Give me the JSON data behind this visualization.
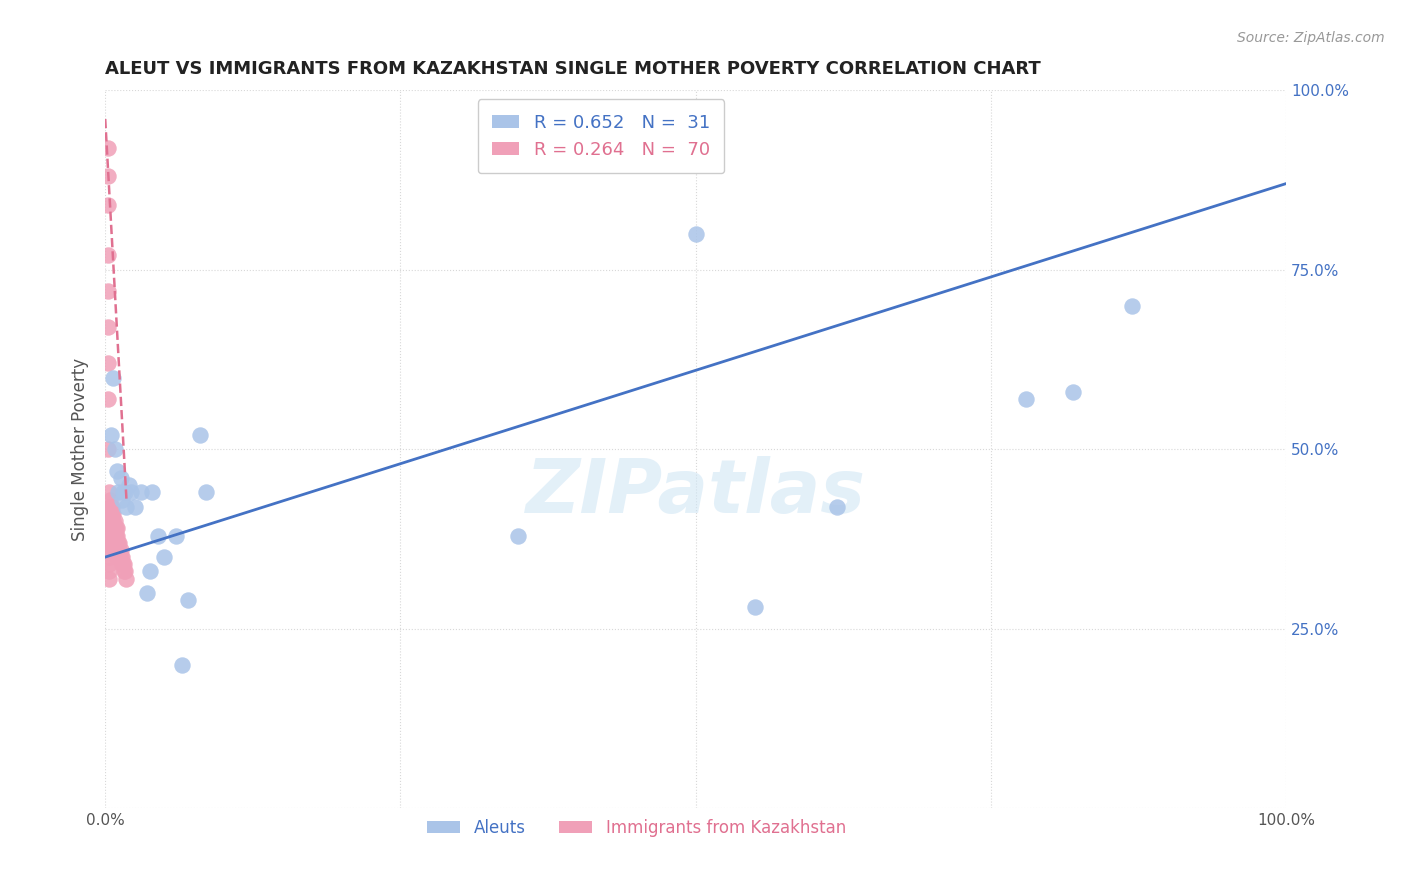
{
  "title": "ALEUT VS IMMIGRANTS FROM KAZAKHSTAN SINGLE MOTHER POVERTY CORRELATION CHART",
  "source": "Source: ZipAtlas.com",
  "ylabel": "Single Mother Poverty",
  "watermark": "ZIPatlas",
  "xmin": 0.0,
  "xmax": 1.0,
  "ymin": 0.0,
  "ymax": 1.0,
  "aleuts_x": [
    0.005,
    0.007,
    0.008,
    0.01,
    0.011,
    0.013,
    0.014,
    0.015,
    0.017,
    0.018,
    0.02,
    0.022,
    0.025,
    0.03,
    0.035,
    0.038,
    0.04,
    0.045,
    0.05,
    0.06,
    0.065,
    0.07,
    0.08,
    0.085,
    0.35,
    0.5,
    0.55,
    0.62,
    0.78,
    0.82,
    0.87
  ],
  "aleuts_y": [
    0.52,
    0.6,
    0.5,
    0.47,
    0.44,
    0.46,
    0.43,
    0.44,
    0.44,
    0.42,
    0.45,
    0.44,
    0.42,
    0.44,
    0.3,
    0.33,
    0.44,
    0.38,
    0.35,
    0.38,
    0.2,
    0.29,
    0.52,
    0.44,
    0.38,
    0.8,
    0.28,
    0.42,
    0.57,
    0.58,
    0.7
  ],
  "kaz_x": [
    0.002,
    0.002,
    0.002,
    0.002,
    0.002,
    0.002,
    0.002,
    0.002,
    0.002,
    0.003,
    0.003,
    0.003,
    0.003,
    0.003,
    0.003,
    0.003,
    0.003,
    0.003,
    0.003,
    0.003,
    0.003,
    0.004,
    0.004,
    0.004,
    0.004,
    0.004,
    0.005,
    0.005,
    0.005,
    0.005,
    0.005,
    0.006,
    0.006,
    0.006,
    0.006,
    0.006,
    0.006,
    0.007,
    0.007,
    0.007,
    0.007,
    0.007,
    0.008,
    0.008,
    0.008,
    0.008,
    0.008,
    0.009,
    0.009,
    0.009,
    0.009,
    0.01,
    0.01,
    0.01,
    0.01,
    0.01,
    0.011,
    0.011,
    0.012,
    0.012,
    0.012,
    0.013,
    0.013,
    0.014,
    0.014,
    0.015,
    0.016,
    0.016,
    0.017,
    0.018
  ],
  "kaz_y": [
    0.92,
    0.88,
    0.84,
    0.77,
    0.72,
    0.67,
    0.62,
    0.57,
    0.5,
    0.44,
    0.42,
    0.41,
    0.4,
    0.39,
    0.38,
    0.37,
    0.36,
    0.35,
    0.34,
    0.33,
    0.32,
    0.43,
    0.41,
    0.4,
    0.39,
    0.38,
    0.42,
    0.41,
    0.4,
    0.39,
    0.38,
    0.42,
    0.41,
    0.4,
    0.39,
    0.38,
    0.37,
    0.41,
    0.4,
    0.39,
    0.38,
    0.37,
    0.4,
    0.39,
    0.38,
    0.37,
    0.36,
    0.39,
    0.38,
    0.37,
    0.36,
    0.39,
    0.38,
    0.37,
    0.36,
    0.35,
    0.37,
    0.36,
    0.37,
    0.36,
    0.35,
    0.36,
    0.35,
    0.35,
    0.34,
    0.34,
    0.34,
    0.33,
    0.33,
    0.32
  ],
  "aleut_color": "#aac4e8",
  "kaz_color": "#f0a0b8",
  "aleut_line_color": "#4472c4",
  "kaz_line_color": "#e07090",
  "aleut_line_x0": 0.0,
  "aleut_line_x1": 1.0,
  "aleut_line_y0": 0.35,
  "aleut_line_y1": 0.87,
  "kaz_line_x0": 0.0,
  "kaz_line_x1": 0.018,
  "kaz_line_y0": 0.96,
  "kaz_line_y1": 0.43,
  "R_aleut": 0.652,
  "N_aleut": 31,
  "R_kaz": 0.264,
  "N_kaz": 70,
  "legend_label_aleut": "Aleuts",
  "legend_label_kaz": "Immigrants from Kazakhstan",
  "background_color": "#ffffff",
  "grid_color": "#d8d8d8"
}
